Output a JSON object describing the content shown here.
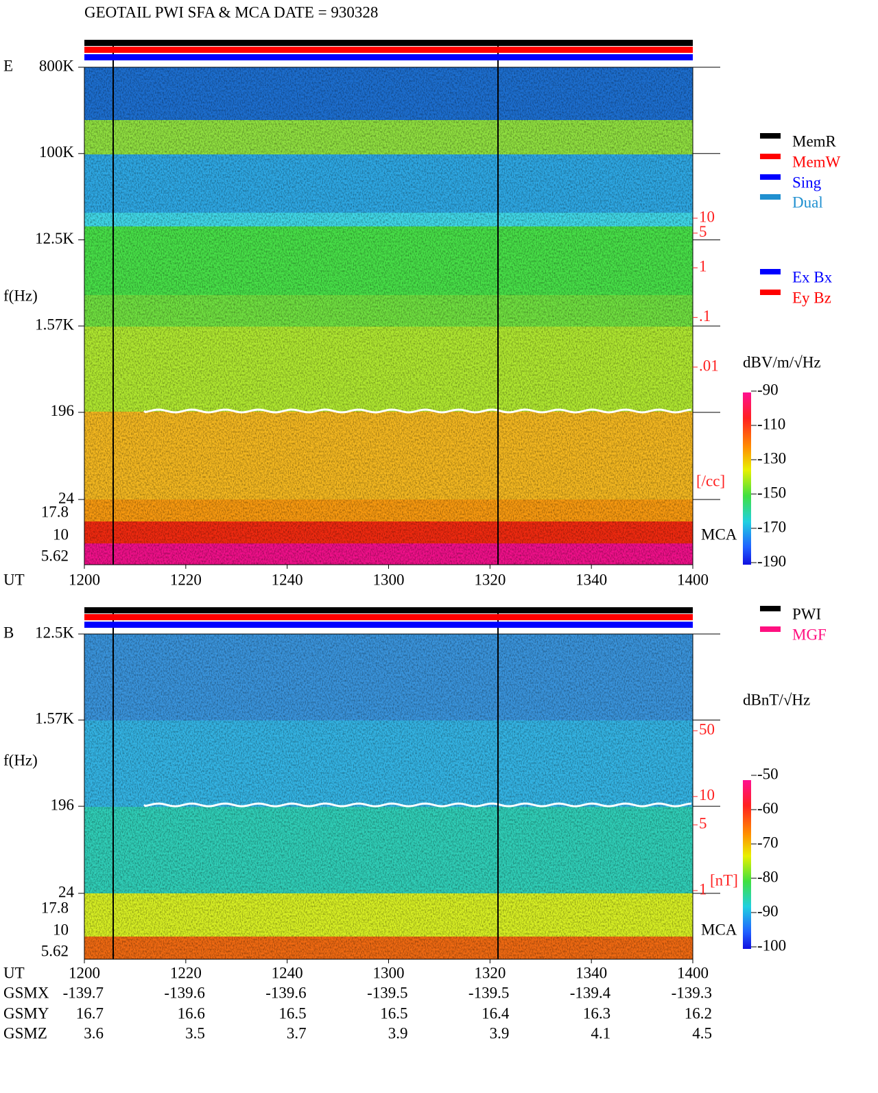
{
  "chart_data": [
    {
      "type": "spectrogram",
      "title": "GEOTAIL  PWI SFA & MCA   DATE = 930328",
      "panel": "E",
      "ylabel": "f(Hz)",
      "xlabel": "UT",
      "yscale": "log",
      "ylim": [
        24,
        800000
      ],
      "yticks": [
        {
          "value": 800000,
          "label": "800K"
        },
        {
          "value": 100000,
          "label": "100K"
        },
        {
          "value": 12500,
          "label": "12.5K"
        },
        {
          "value": 1570,
          "label": "1.57K"
        },
        196,
        24
      ],
      "mca_label": "MCA",
      "mca_ticks": [
        17.8,
        10,
        5.62
      ],
      "xticks": [
        "1200",
        "1220",
        "1240",
        "1300",
        "1320",
        "1340",
        "1400"
      ],
      "colorbar": {
        "label": "dBV/m/√Hz",
        "lim": [
          -190,
          -90
        ],
        "ticks": [
          -90,
          -110,
          -130,
          -150,
          -170,
          -190
        ]
      },
      "scale": {
        "unit": "[/cc]",
        "lim": [
          0.01,
          10
        ],
        "ticks": [
          {
            "value": 10,
            "label": "10"
          },
          {
            "value": 5,
            "label": "5"
          },
          {
            "value": 1,
            "label": "1"
          },
          {
            "value": 0.1,
            "label": ".1"
          },
          {
            "value": 0.01,
            "label": ".01"
          }
        ]
      },
      "legends": [
        [
          {
            "name": "MemR",
            "color": "#000000"
          },
          {
            "name": "MemW",
            "color": "#ff0000"
          },
          {
            "name": "Sing",
            "color": "#0000ff"
          },
          {
            "name": "Dual",
            "color": "#2090d0"
          }
        ],
        [
          {
            "name": "Ex Bx",
            "color": "#0000ff"
          },
          {
            "name": "Ey Bz",
            "color": "#ff0000"
          }
        ]
      ]
    },
    {
      "type": "spectrogram",
      "panel": "B",
      "ylabel": "f(Hz)",
      "xlabel": "UT",
      "yscale": "log",
      "ylim": [
        24,
        12500
      ],
      "yticks": [
        {
          "value": 12500,
          "label": "12.5K"
        },
        {
          "value": 1570,
          "label": "1.57K"
        },
        196,
        24
      ],
      "mca_label": "MCA",
      "mca_ticks": [
        17.8,
        10,
        5.62
      ],
      "xticks": [
        "1200",
        "1220",
        "1240",
        "1300",
        "1320",
        "1340",
        "1400"
      ],
      "colorbar": {
        "label": "dBnT/√Hz",
        "lim": [
          -100,
          -50
        ],
        "ticks": [
          -50,
          -60,
          -70,
          -80,
          -90,
          -100
        ]
      },
      "scale": {
        "unit": "[nT]",
        "lim": [
          1,
          50
        ],
        "ticks": [
          {
            "value": 50,
            "label": "50"
          },
          {
            "value": 10,
            "label": "10"
          },
          {
            "value": 5,
            "label": "5"
          },
          {
            "value": 1,
            "label": "1"
          }
        ]
      },
      "legends": [
        [
          {
            "name": "PWI",
            "color": "#000000"
          },
          {
            "name": "MGF",
            "color": "#ff1080"
          }
        ]
      ]
    }
  ],
  "orbit": {
    "rows": [
      {
        "name": "GSMX",
        "values": [
          -139.7,
          -139.6,
          -139.6,
          -139.5,
          -139.5,
          -139.4,
          -139.3
        ]
      },
      {
        "name": "GSMY",
        "values": [
          16.7,
          16.6,
          16.5,
          16.5,
          16.4,
          16.3,
          16.2
        ]
      },
      {
        "name": "GSMZ",
        "values": [
          3.6,
          3.5,
          3.7,
          3.9,
          3.9,
          4.1,
          4.5
        ]
      }
    ]
  }
}
